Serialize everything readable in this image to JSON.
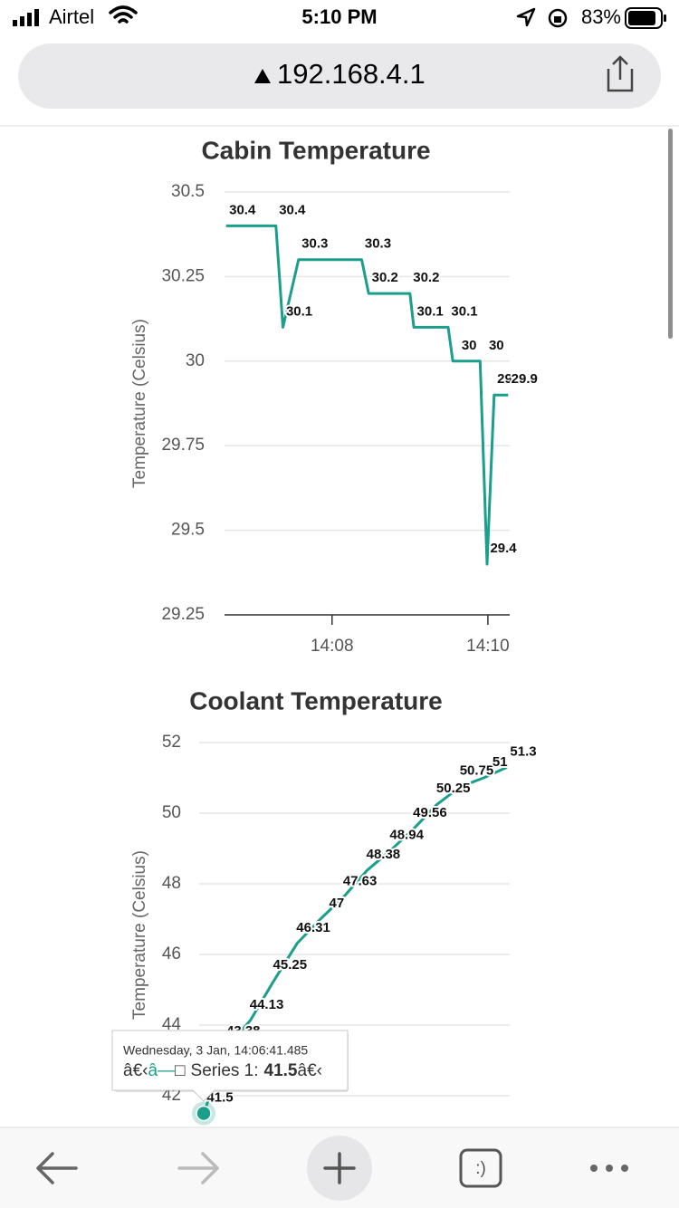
{
  "status_bar": {
    "carrier": "Airtel",
    "time": "5:10 PM",
    "battery": "83%"
  },
  "address_bar": {
    "url": "192.168.4.1"
  },
  "chart_data": [
    {
      "type": "line",
      "title": "Cabin Temperature",
      "y_label": "Temperature (Celsius)",
      "color": "#1b9e8b",
      "x": [
        846.64,
        847.28,
        847.37,
        847.57,
        848.38,
        848.47,
        849.0,
        849.05,
        849.49,
        849.55,
        849.9,
        849.99,
        850.08,
        850.26
      ],
      "values": [
        30.4,
        30.4,
        30.1,
        30.3,
        30.3,
        30.2,
        30.2,
        30.1,
        30.1,
        30,
        30,
        29.4,
        29.9,
        29.9
      ],
      "xlim": [
        846.62,
        850.28
      ],
      "xticks": [
        {
          "value": 848,
          "label": "14:08"
        },
        {
          "value": 850,
          "label": "14:10"
        }
      ],
      "ylim": [
        29.25,
        30.5
      ],
      "yticks": [
        29.25,
        29.5,
        29.75,
        30,
        30.25,
        30.5
      ],
      "grid": true
    },
    {
      "type": "line",
      "title": "Coolant Temperature",
      "y_label": "Temperature (Celsius)",
      "color": "#1b9e8b",
      "categories": [
        null,
        null,
        null,
        null,
        null,
        null,
        null,
        null,
        null,
        null,
        null,
        null,
        null,
        null
      ],
      "values": [
        41.5,
        43.38,
        44.13,
        45.25,
        46.31,
        47,
        47.63,
        48.38,
        48.94,
        49.56,
        50.25,
        50.75,
        51,
        51.3
      ],
      "ylim": [
        40,
        52
      ],
      "yticks": [
        42,
        44,
        46,
        48,
        50,
        52
      ],
      "grid": true
    }
  ],
  "tooltip": {
    "date": "Wednesday, 3 Jan, 14:06:41.485",
    "prefix": "â€‹",
    "marker": "â—",
    "glyph": "□",
    "series": "Series 1:",
    "suffix": "â€‹"
  },
  "toolbar": {
    "tabs": ":)"
  }
}
